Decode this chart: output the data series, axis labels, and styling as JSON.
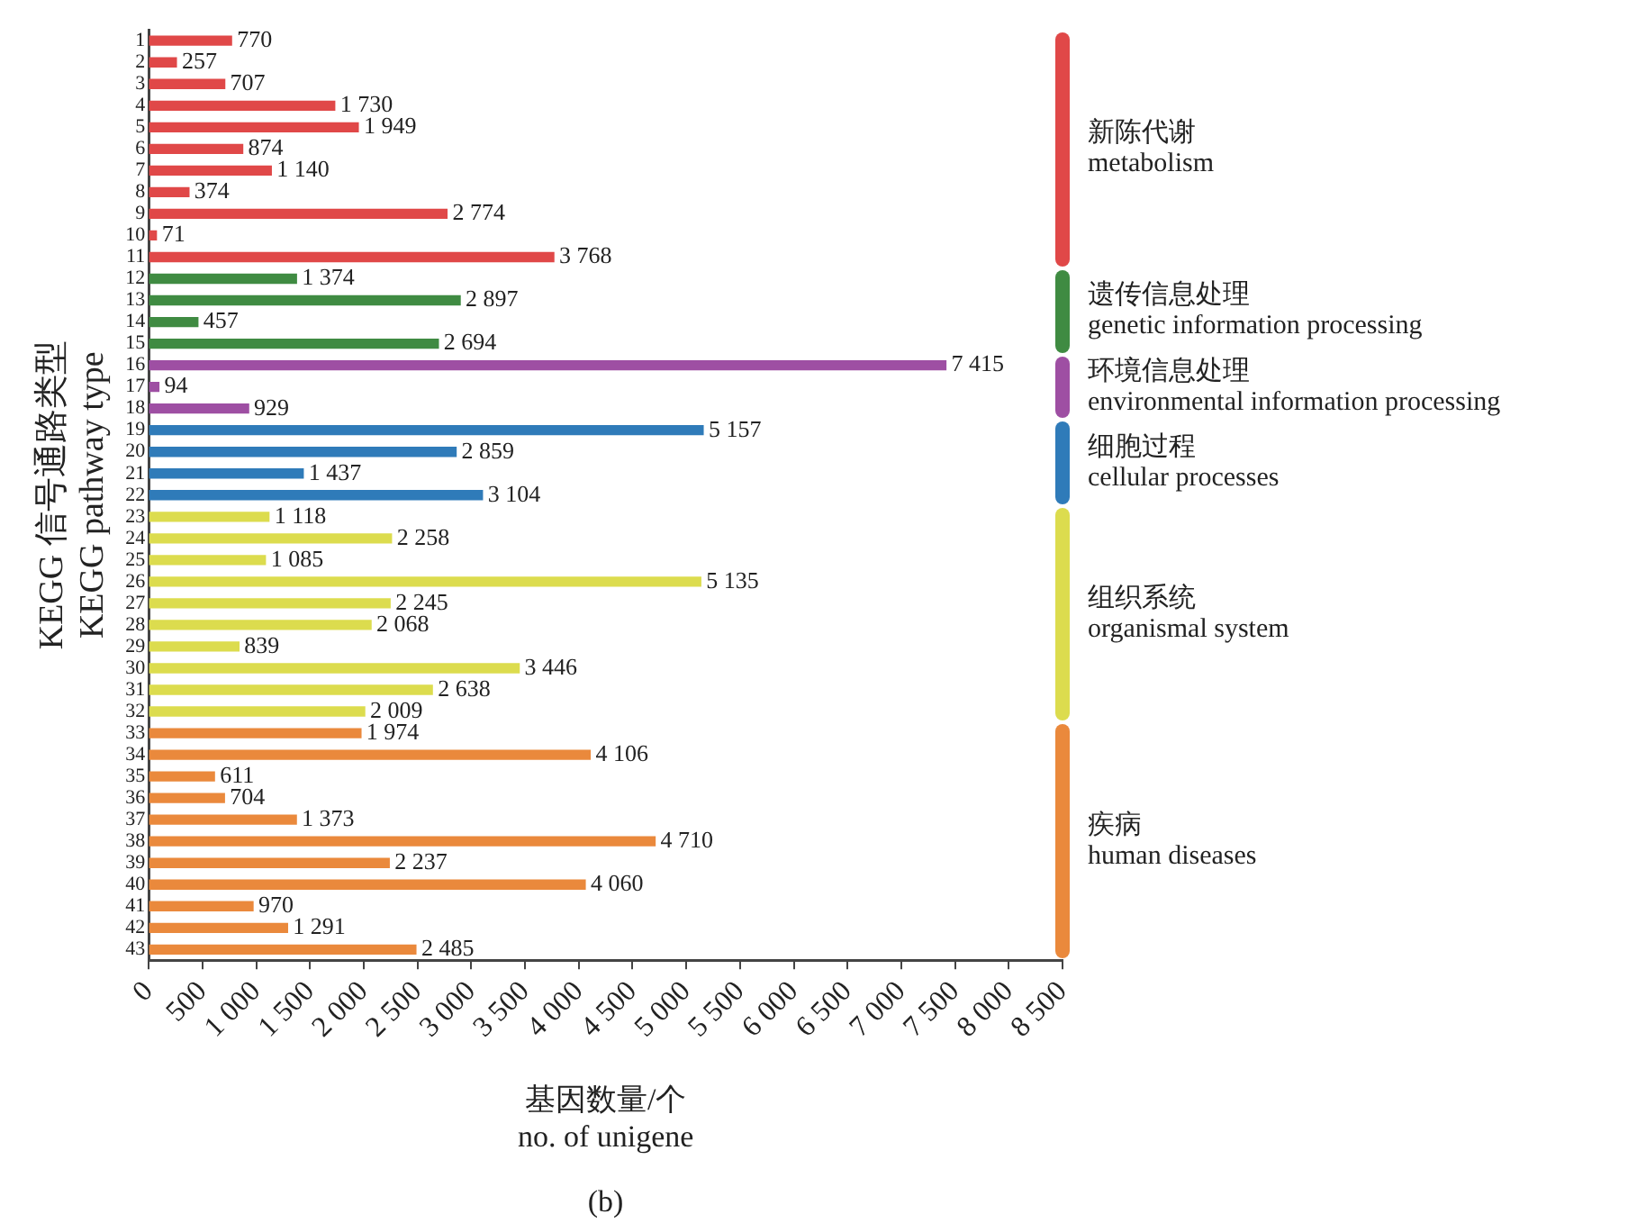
{
  "chart_data": {
    "type": "bar",
    "orientation": "horizontal",
    "xlabel": "基因数量/个\nno. of unigene",
    "ylabel": "KEGG 信号通路类型\nKEGG pathway type",
    "categories": [
      "1",
      "2",
      "3",
      "4",
      "5",
      "6",
      "7",
      "8",
      "9",
      "10",
      "11",
      "12",
      "13",
      "14",
      "15",
      "16",
      "17",
      "18",
      "19",
      "20",
      "21",
      "22",
      "23",
      "24",
      "25",
      "26",
      "27",
      "28",
      "29",
      "30",
      "31",
      "32",
      "33",
      "34",
      "35",
      "36",
      "37",
      "38",
      "39",
      "40",
      "41",
      "42",
      "43"
    ],
    "values": [
      770,
      257,
      707,
      1730,
      1949,
      874,
      1140,
      374,
      2774,
      71,
      3768,
      1374,
      2897,
      457,
      2694,
      7415,
      94,
      929,
      5157,
      2859,
      1437,
      3104,
      1118,
      2258,
      1085,
      5135,
      2245,
      2068,
      839,
      3446,
      2638,
      2009,
      1974,
      4106,
      611,
      704,
      1373,
      4710,
      2237,
      4060,
      970,
      1291,
      2485
    ],
    "value_labels": [
      "770",
      "257",
      "707",
      "1 730",
      "1 949",
      "874",
      "1 140",
      "374",
      "2 774",
      "71",
      "3 768",
      "1 374",
      "2 897",
      "457",
      "2 694",
      "7 415",
      "94",
      "929",
      "5 157",
      "2 859",
      "1 437",
      "3 104",
      "1 118",
      "2 258",
      "1 085",
      "5 135",
      "2 245",
      "2 068",
      "839",
      "3 446",
      "2 638",
      "2 009",
      "1 974",
      "4 106",
      "611",
      "704",
      "1 373",
      "4 710",
      "2 237",
      "4 060",
      "970",
      "1 291",
      "2 485"
    ],
    "colors": [
      "#e04848",
      "#e04848",
      "#e04848",
      "#e04848",
      "#e04848",
      "#e04848",
      "#e04848",
      "#e04848",
      "#e04848",
      "#e04848",
      "#e04848",
      "#3f8b42",
      "#3f8b42",
      "#3f8b42",
      "#3f8b42",
      "#9e4fa3",
      "#9e4fa3",
      "#9e4fa3",
      "#2f7bb9",
      "#2f7bb9",
      "#2f7bb9",
      "#2f7bb9",
      "#dcdc4e",
      "#dcdc4e",
      "#dcdc4e",
      "#dcdc4e",
      "#dcdc4e",
      "#dcdc4e",
      "#dcdc4e",
      "#dcdc4e",
      "#dcdc4e",
      "#dcdc4e",
      "#ea893c",
      "#ea893c",
      "#ea893c",
      "#ea893c",
      "#ea893c",
      "#ea893c",
      "#ea893c",
      "#ea893c",
      "#ea893c",
      "#ea893c",
      "#ea893c"
    ],
    "xlim": [
      0,
      8500
    ],
    "xticks": [
      0,
      500,
      {
        "value": 1000,
        "label": "1 000"
      },
      {
        "value": 1500,
        "label": "1 500"
      },
      {
        "value": 2000,
        "label": "2 000"
      },
      {
        "value": 2500,
        "label": "2 500"
      },
      {
        "value": 3000,
        "label": "3 000"
      },
      {
        "value": 3500,
        "label": "3 500"
      },
      {
        "value": 4000,
        "label": "4 000"
      },
      {
        "value": 4500,
        "label": "4 500"
      },
      {
        "value": 5000,
        "label": "5 000"
      },
      {
        "value": 5500,
        "label": "5 500"
      },
      {
        "value": 6000,
        "label": "6 000"
      },
      {
        "value": 6500,
        "label": "6 500"
      },
      {
        "value": 7000,
        "label": "7 000"
      },
      {
        "value": 7500,
        "label": "7 500"
      },
      {
        "value": 8000,
        "label": "8 000"
      },
      {
        "value": 8500,
        "label": "8 500"
      }
    ],
    "annotations": [
      "新陈代谢\nmetabolism",
      "遗传信息处理\ngenetic information processing",
      "环境信息处理\nenvironmental information processing",
      "细胞过程\ncellular processes",
      "组织系统\norganismal system",
      "疾病\nhuman diseases",
      "(b)"
    ],
    "grid": false,
    "legend": false
  }
}
